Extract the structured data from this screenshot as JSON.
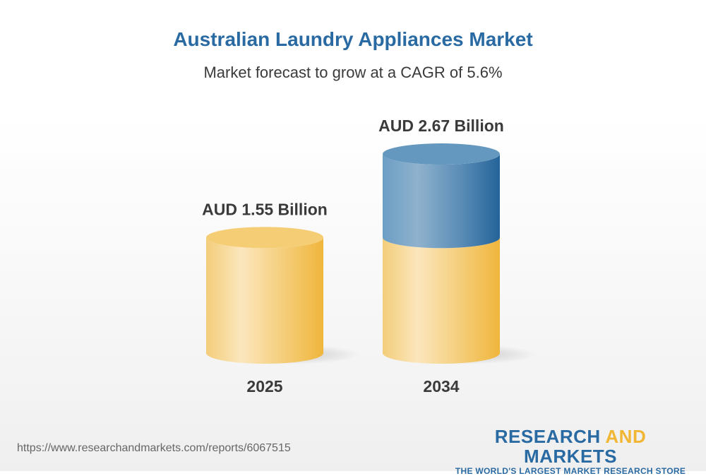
{
  "title": "Australian Laundry Appliances Market",
  "subtitle": "Market forecast to grow at a CAGR of 5.6%",
  "chart_data": {
    "type": "bar",
    "style": "3d-cylinder",
    "categories": [
      "2025",
      "2034"
    ],
    "values": [
      1.55,
      2.67
    ],
    "unit": "AUD Billion",
    "data_labels": [
      "AUD 1.55 Billion",
      "AUD 2.67 Billion"
    ],
    "colors": {
      "base": "#f1b633",
      "growth": "#2a6aa2"
    },
    "grid": false
  },
  "footer": {
    "url": "https://www.researchandmarkets.com/reports/6067515",
    "logo_part1": "RESEARCH ",
    "logo_part2": "AND",
    "logo_part3": " MARKETS",
    "tagline": "THE WORLD'S LARGEST MARKET RESEARCH STORE"
  }
}
